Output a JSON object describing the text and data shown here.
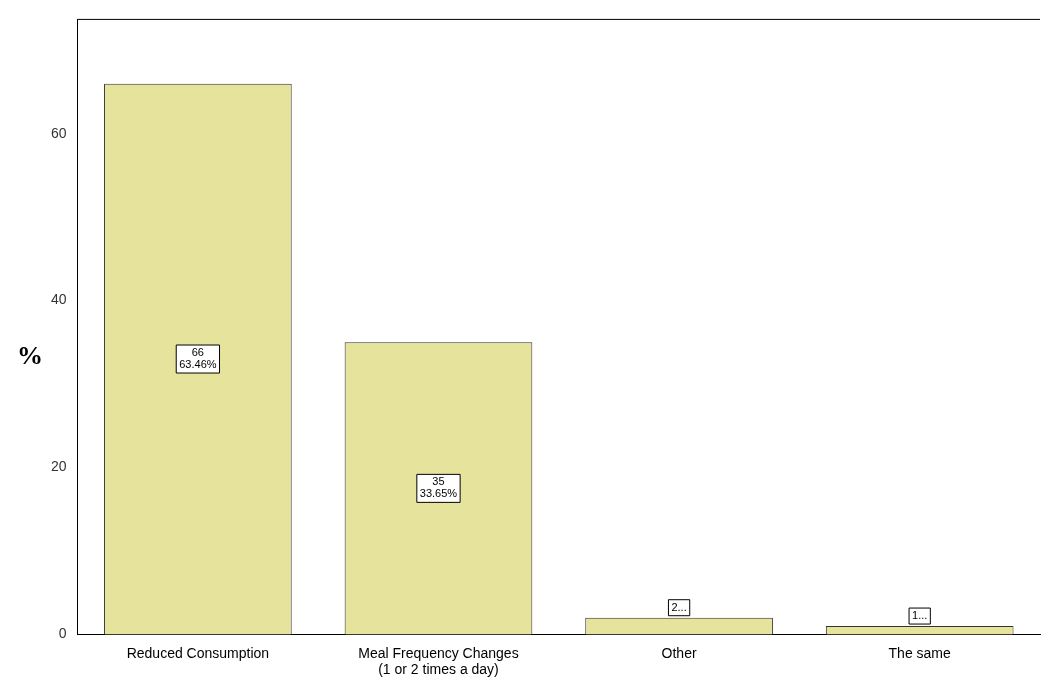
{
  "chart_data": {
    "type": "bar",
    "ylabel": "%",
    "categories": [
      "Reduced Consumption",
      "Meal Frequency Changes\n(1 or 2 times a day)",
      "Other",
      "The same"
    ],
    "values": [
      66,
      35,
      2,
      1
    ],
    "color": "#e6e49c",
    "value_labels": [
      "66\n63.46%",
      "35\n33.65%",
      "2...",
      "1..."
    ],
    "ylim": [
      0,
      73.7
    ],
    "yticks": [
      0,
      20,
      40,
      60
    ],
    "grid": false,
    "legend": false
  }
}
